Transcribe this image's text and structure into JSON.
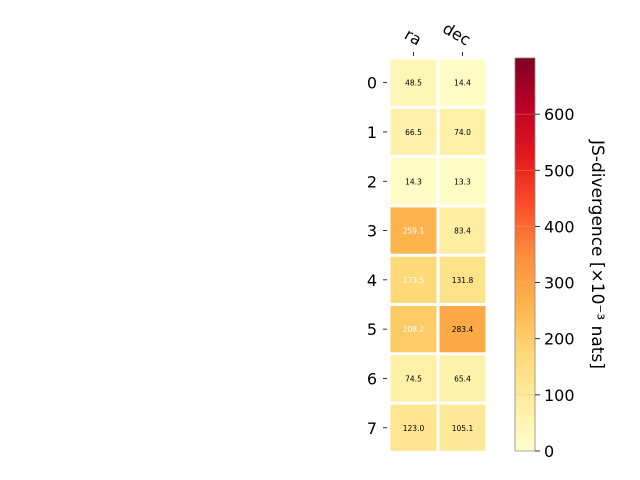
{
  "chart_data": {
    "type": "heatmap",
    "columns": [
      "ra",
      "dec"
    ],
    "rows": [
      "0",
      "1",
      "2",
      "3",
      "4",
      "5",
      "6",
      "7"
    ],
    "values": [
      [
        48.5,
        14.4
      ],
      [
        66.5,
        74.0
      ],
      [
        14.3,
        13.3
      ],
      [
        259.1,
        83.4
      ],
      [
        173.5,
        131.8
      ],
      [
        208.2,
        283.4
      ],
      [
        74.5,
        65.4
      ],
      [
        123.0,
        105.1
      ]
    ],
    "value_labels": [
      [
        "48.5",
        "14.4"
      ],
      [
        "66.5",
        "74.0"
      ],
      [
        "14.3",
        "13.3"
      ],
      [
        "259.1",
        "83.4"
      ],
      [
        "173.5",
        "131.8"
      ],
      [
        "208.2",
        "283.4"
      ],
      [
        "74.5",
        "65.4"
      ],
      [
        "123.0",
        "105.1"
      ]
    ],
    "colorbar": {
      "label": "JS-divergence [×10⁻³ nats]",
      "min": 0,
      "max": 700,
      "ticks": [
        0,
        100,
        200,
        300,
        400,
        500,
        600
      ],
      "colormap": "YlOrRd"
    }
  }
}
